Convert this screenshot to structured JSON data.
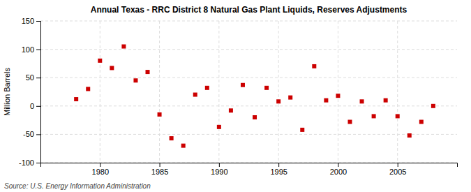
{
  "chart_data": {
    "type": "scatter",
    "title": "Annual Texas - RRC District 8 Natural Gas Plant Liquids, Reserves Adjustments",
    "y_label": "Million Barrels",
    "source": "Source: U.S. Energy Information Administration",
    "x": [
      1978,
      1979,
      1980,
      1981,
      1982,
      1983,
      1984,
      1985,
      1986,
      1987,
      1988,
      1989,
      1990,
      1991,
      1992,
      1993,
      1994,
      1995,
      1996,
      1997,
      1998,
      1999,
      2000,
      2001,
      2002,
      2003,
      2004,
      2005,
      2006,
      2007,
      2008
    ],
    "values": [
      12,
      30,
      80,
      67,
      105,
      45,
      60,
      -15,
      -57,
      -70,
      20,
      32,
      -37,
      -8,
      37,
      -20,
      32,
      8,
      15,
      -42,
      70,
      10,
      18,
      -28,
      8,
      -18,
      10,
      -18,
      -52,
      -28,
      0
    ],
    "color": "#cc0000",
    "marker": "square",
    "xlim": [
      1975,
      2010
    ],
    "xticks": [
      1980,
      1985,
      1990,
      1995,
      2000,
      2005
    ],
    "ylim": [
      -100,
      150
    ],
    "yticks": [
      -100,
      -50,
      0,
      50,
      100,
      150
    ],
    "grid": true
  }
}
